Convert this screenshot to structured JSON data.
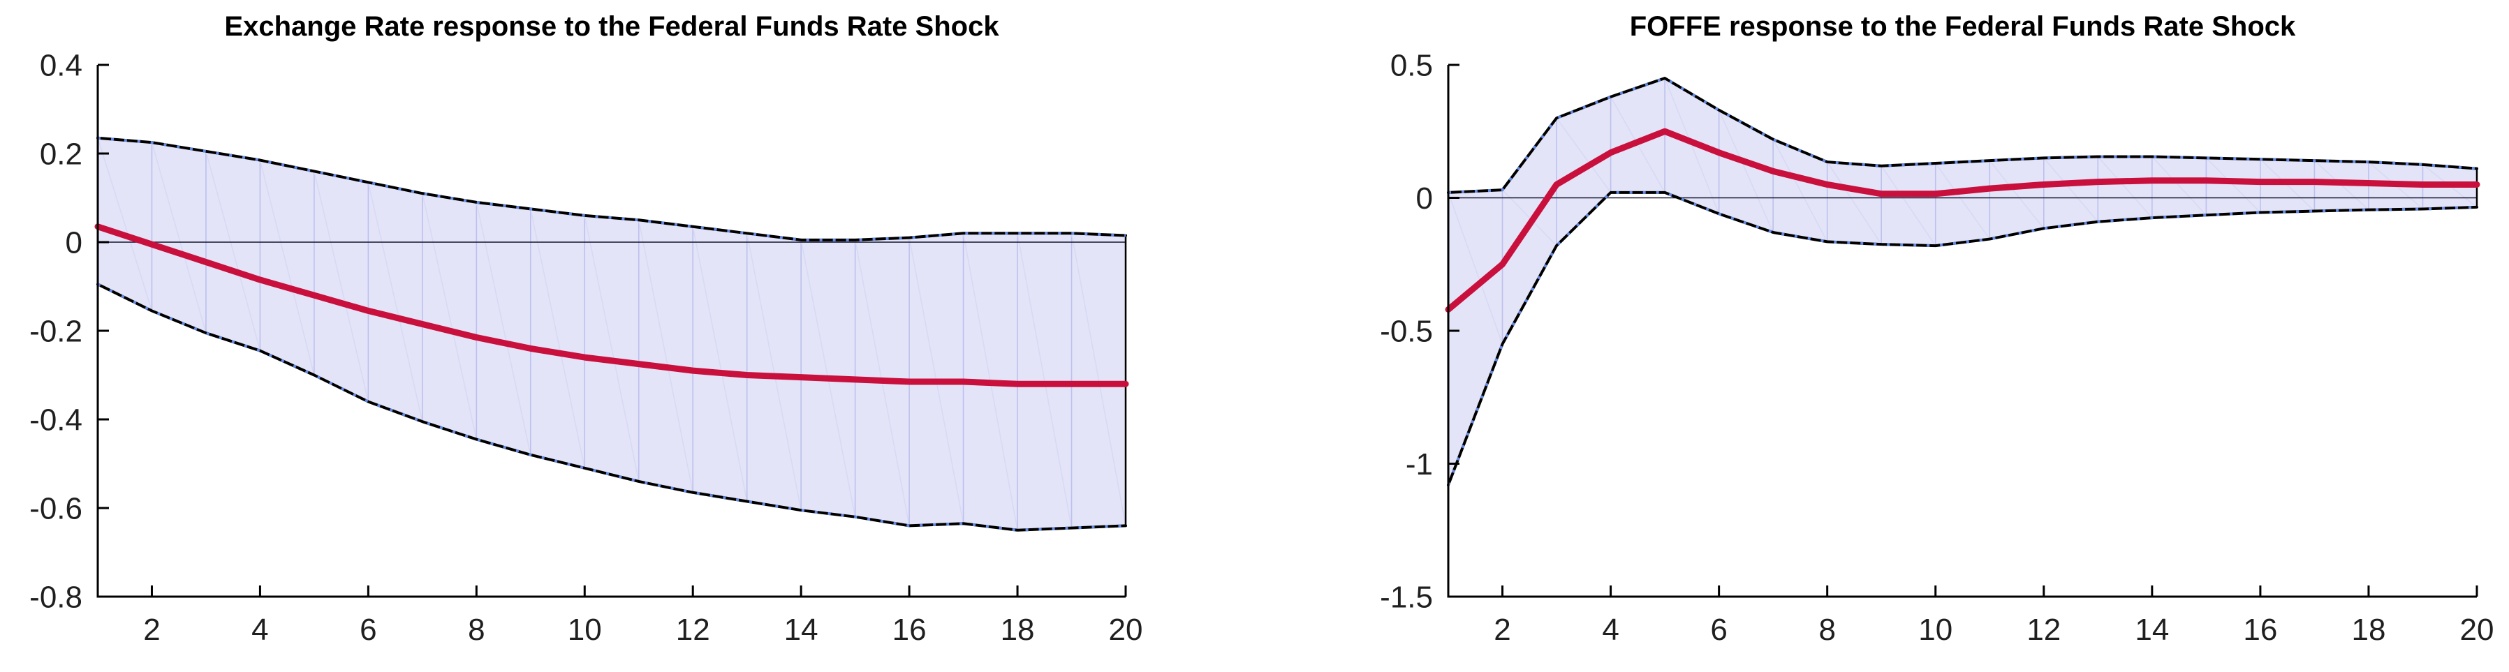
{
  "page": {
    "background": "#ffffff"
  },
  "chart_data": [
    {
      "type": "area",
      "title": "Exchange Rate response to the Federal Funds Rate Shock",
      "xlabel": "",
      "ylabel": "",
      "xlim": [
        1,
        20
      ],
      "ylim": [
        -0.8,
        0.4
      ],
      "grid": false,
      "zero_line": true,
      "legend": "none",
      "x": [
        1,
        2,
        3,
        4,
        5,
        6,
        7,
        8,
        9,
        10,
        11,
        12,
        13,
        14,
        15,
        16,
        17,
        18,
        19,
        20
      ],
      "xtick_labels": [
        "2",
        "4",
        "6",
        "8",
        "10",
        "12",
        "14",
        "16",
        "18",
        "20"
      ],
      "xticks": [
        2,
        4,
        6,
        8,
        10,
        12,
        14,
        16,
        18,
        20
      ],
      "ytick_labels": [
        "0.4",
        "0.2",
        "0",
        "-0.2",
        "-0.4",
        "-0.6",
        "-0.8"
      ],
      "yticks": [
        0.4,
        0.2,
        0,
        -0.2,
        -0.4,
        -0.6,
        -0.8
      ],
      "series": [
        {
          "name": "upper_band",
          "values": [
            0.235,
            0.225,
            0.205,
            0.185,
            0.16,
            0.135,
            0.11,
            0.09,
            0.075,
            0.06,
            0.05,
            0.035,
            0.02,
            0.005,
            0.005,
            0.01,
            0.02,
            0.02,
            0.02,
            0.015
          ]
        },
        {
          "name": "median",
          "values": [
            0.035,
            -0.005,
            -0.045,
            -0.085,
            -0.12,
            -0.155,
            -0.185,
            -0.215,
            -0.24,
            -0.26,
            -0.275,
            -0.29,
            -0.3,
            -0.305,
            -0.31,
            -0.315,
            -0.315,
            -0.32,
            -0.32,
            -0.32
          ]
        },
        {
          "name": "lower_band",
          "values": [
            -0.095,
            -0.155,
            -0.205,
            -0.245,
            -0.3,
            -0.36,
            -0.405,
            -0.445,
            -0.48,
            -0.51,
            -0.54,
            -0.565,
            -0.585,
            -0.605,
            -0.62,
            -0.64,
            -0.635,
            -0.65,
            -0.645,
            -0.64
          ]
        }
      ],
      "colors": {
        "band_fill": "#E3E4F8",
        "band_edge": "#000000",
        "band_marker": "#6489E0",
        "fan_line_strong": "#BCC0EE",
        "fan_line_light": "#D8DAF5",
        "median": "#C9103C",
        "zero_line": "#14142E",
        "axis": "#000000",
        "tick_label": "#1F1F1F"
      }
    },
    {
      "type": "area",
      "title": "FOFFE response to the Federal Funds Rate Shock",
      "xlabel": "",
      "ylabel": "",
      "xlim": [
        1,
        20
      ],
      "ylim": [
        -1.5,
        0.5
      ],
      "grid": false,
      "zero_line": true,
      "legend": "none",
      "x": [
        1,
        2,
        3,
        4,
        5,
        6,
        7,
        8,
        9,
        10,
        11,
        12,
        13,
        14,
        15,
        16,
        17,
        18,
        19,
        20
      ],
      "xtick_labels": [
        "2",
        "4",
        "6",
        "8",
        "10",
        "12",
        "14",
        "16",
        "18",
        "20"
      ],
      "xticks": [
        2,
        4,
        6,
        8,
        10,
        12,
        14,
        16,
        18,
        20
      ],
      "ytick_labels": [
        "0.5",
        "0",
        "-0.5",
        "-1",
        "-1.5"
      ],
      "yticks": [
        0.5,
        0,
        -0.5,
        -1,
        -1.5
      ],
      "series": [
        {
          "name": "upper_band",
          "values": [
            0.02,
            0.03,
            0.3,
            0.38,
            0.45,
            0.33,
            0.22,
            0.135,
            0.12,
            0.13,
            0.14,
            0.15,
            0.155,
            0.155,
            0.15,
            0.145,
            0.14,
            0.135,
            0.125,
            0.11
          ]
        },
        {
          "name": "median",
          "values": [
            -0.42,
            -0.25,
            0.05,
            0.17,
            0.25,
            0.17,
            0.1,
            0.05,
            0.015,
            0.015,
            0.035,
            0.05,
            0.06,
            0.065,
            0.065,
            0.06,
            0.06,
            0.055,
            0.05,
            0.05
          ]
        },
        {
          "name": "lower_band",
          "values": [
            -1.08,
            -0.55,
            -0.18,
            0.02,
            0.02,
            -0.06,
            -0.13,
            -0.165,
            -0.175,
            -0.18,
            -0.155,
            -0.115,
            -0.09,
            -0.075,
            -0.065,
            -0.055,
            -0.05,
            -0.045,
            -0.042,
            -0.035
          ]
        }
      ],
      "colors": {
        "band_fill": "#E3E4F8",
        "band_edge": "#000000",
        "band_marker": "#6489E0",
        "fan_line_strong": "#BCC0EE",
        "fan_line_light": "#D8DAF5",
        "median": "#C9103C",
        "zero_line": "#14142E",
        "axis": "#000000",
        "tick_label": "#1F1F1F"
      }
    }
  ]
}
